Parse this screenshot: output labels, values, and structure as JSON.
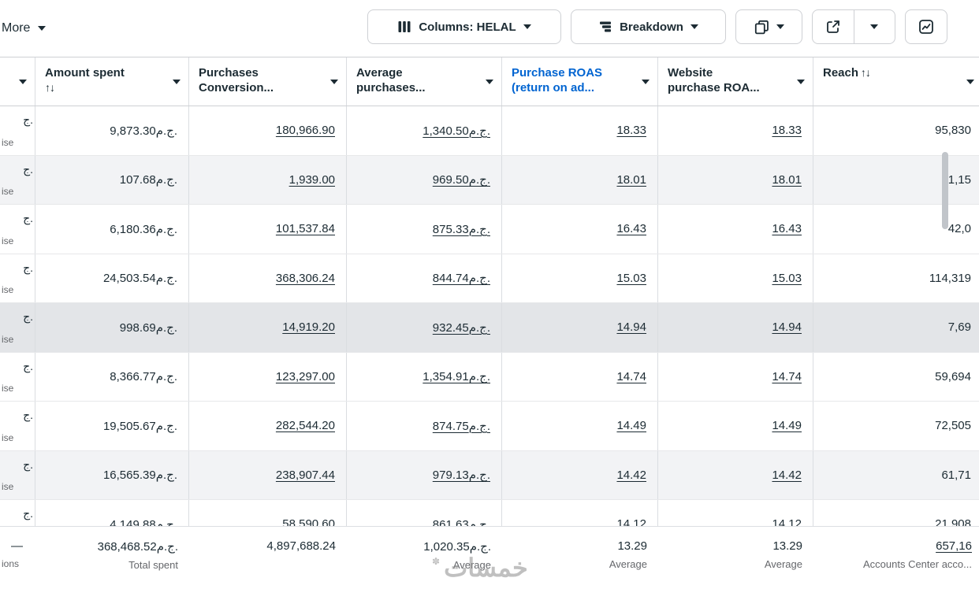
{
  "toolbar": {
    "more_label": "More",
    "columns_label": "Columns: HELAL",
    "breakdown_label": "Breakdown"
  },
  "table": {
    "columns": [
      {
        "id": "stub",
        "lines": [],
        "caret": true,
        "underline": false
      },
      {
        "id": "amount-spent",
        "lines": [
          "Amount spent"
        ],
        "sort": "↑↓",
        "sort_inline": false,
        "caret": true,
        "underline": false
      },
      {
        "id": "purchases-conversion",
        "lines": [
          "Purchases",
          "Conversion..."
        ],
        "caret": true,
        "underline": true
      },
      {
        "id": "average-purchases",
        "lines": [
          "Average",
          "purchases..."
        ],
        "caret": true,
        "underline": true
      },
      {
        "id": "purchase-roas",
        "lines": [
          "Purchase ROAS",
          "(return on ad..."
        ],
        "caret": true,
        "underline": true,
        "blue": true
      },
      {
        "id": "website-purchase-roas",
        "lines": [
          "Website",
          "purchase ROA..."
        ],
        "caret": true,
        "underline": true
      },
      {
        "id": "reach",
        "lines": [
          "Reach"
        ],
        "sort": "↑↓",
        "sort_inline": true,
        "caret": true,
        "underline": false
      }
    ],
    "rows": [
      {
        "shade": "",
        "stub": "ج.",
        "stub_sub": "ise",
        "values": [
          "9,873.30ج.م.",
          "180,966.90",
          "1,340.50ج.م.",
          "18.33",
          "18.33",
          "95,830"
        ]
      },
      {
        "shade": "light",
        "stub": "ج.",
        "stub_sub": "ise",
        "values": [
          "107.68ج.م.",
          "1,939.00",
          "969.50ج.م.",
          "18.01",
          "18.01",
          "1,15"
        ]
      },
      {
        "shade": "",
        "stub": "ج.",
        "stub_sub": "ise",
        "values": [
          "6,180.36ج.م.",
          "101,537.84",
          "875.33ج.م.",
          "16.43",
          "16.43",
          "42,0"
        ]
      },
      {
        "shade": "",
        "stub": "ج.",
        "stub_sub": "ise",
        "values": [
          "24,503.54ج.م.",
          "368,306.24",
          "844.74ج.م.",
          "15.03",
          "15.03",
          "114,319"
        ]
      },
      {
        "shade": "strong",
        "stub": "ج.",
        "stub_sub": "ise",
        "values": [
          "998.69ج.م.",
          "14,919.20",
          "932.45ج.م.",
          "14.94",
          "14.94",
          "7,69"
        ]
      },
      {
        "shade": "",
        "stub": "ج.",
        "stub_sub": "ise",
        "values": [
          "8,366.77ج.م.",
          "123,297.00",
          "1,354.91ج.م.",
          "14.74",
          "14.74",
          "59,694"
        ]
      },
      {
        "shade": "",
        "stub": "ج.",
        "stub_sub": "ise",
        "values": [
          "19,505.67ج.م.",
          "282,544.20",
          "874.75ج.م.",
          "14.49",
          "14.49",
          "72,505"
        ]
      },
      {
        "shade": "light",
        "stub": "ج.",
        "stub_sub": "ise",
        "values": [
          "16,565.39ج.م.",
          "238,907.44",
          "979.13ج.م.",
          "14.42",
          "14.42",
          "61,71"
        ]
      },
      {
        "shade": "",
        "stub": "ج.",
        "stub_sub": "ise",
        "values": [
          "4,149.88ج.م.",
          "58,590.60",
          "861.63ج.م.",
          "14.12",
          "14.12",
          "21,908"
        ]
      }
    ],
    "footer": {
      "cells": [
        {
          "value": "—",
          "sub": "ions"
        },
        {
          "value": "368,468.52ج.م.",
          "sub": "Total spent"
        },
        {
          "value": "4,897,688.24",
          "sub": ""
        },
        {
          "value": "1,020.35ج.م.",
          "sub": "Average"
        },
        {
          "value": "13.29",
          "sub": "Average"
        },
        {
          "value": "13.29",
          "sub": "Average"
        },
        {
          "value": "657,16",
          "sub": "Accounts Center acco...",
          "underline": true
        }
      ]
    }
  },
  "watermark": {
    "text": "خمسات"
  }
}
